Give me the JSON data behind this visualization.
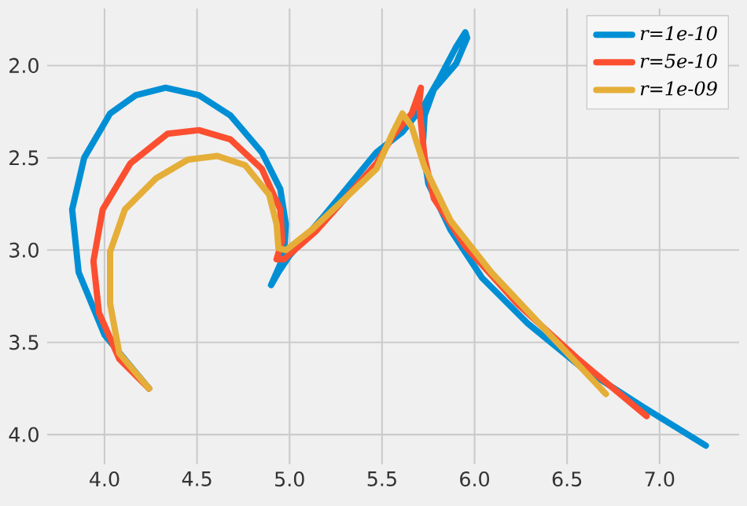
{
  "chart_data": {
    "type": "line",
    "xlim": [
      3.69,
      7.43
    ],
    "ylim": [
      4.16,
      1.69
    ],
    "xticks": [
      {
        "value": 4.0,
        "label": "4.0"
      },
      4.5,
      {
        "value": 5.0,
        "label": "5.0"
      },
      5.5,
      {
        "value": 6.0,
        "label": "6.0"
      },
      6.5,
      {
        "value": 7.0,
        "label": "7.0"
      }
    ],
    "yticks": [
      {
        "value": 2.0,
        "label": "2.0"
      },
      2.5,
      {
        "value": 3.0,
        "label": "3.0"
      },
      3.5,
      {
        "value": 4.0,
        "label": "4.0"
      }
    ],
    "grid": true,
    "legend": "top right",
    "marker": "none",
    "line_style": "solid",
    "series": [
      {
        "name": "r=1e-10",
        "color": "#008fd5",
        "x": [
          4.24,
          4.0,
          3.86,
          3.825,
          3.89,
          4.03,
          4.17,
          4.33,
          4.51,
          4.68,
          4.85,
          4.95,
          4.98,
          4.97,
          4.9,
          4.94,
          5.0,
          5.19,
          5.47,
          5.61,
          5.73,
          5.81,
          5.9,
          5.95,
          5.96,
          5.9,
          5.78,
          5.73,
          5.72,
          5.75,
          5.87,
          6.04,
          6.29,
          6.57,
          6.91,
          7.25
        ],
        "values": [
          3.75,
          3.46,
          3.12,
          2.78,
          2.5,
          2.26,
          2.16,
          2.12,
          2.16,
          2.27,
          2.47,
          2.67,
          2.86,
          3.03,
          3.19,
          3.12,
          3.03,
          2.81,
          2.47,
          2.36,
          2.21,
          2.07,
          1.9,
          1.82,
          1.85,
          1.99,
          2.13,
          2.27,
          2.44,
          2.64,
          2.89,
          3.15,
          3.4,
          3.63,
          3.85,
          4.06
        ]
      },
      {
        "name": "r=5e-10",
        "color": "#fc4f30",
        "x": [
          4.24,
          4.08,
          3.97,
          3.94,
          3.99,
          4.14,
          4.34,
          4.51,
          4.68,
          4.85,
          4.95,
          4.96,
          4.93,
          4.97,
          5.14,
          5.47,
          5.56,
          5.66,
          5.71,
          5.7,
          5.73,
          5.78,
          5.95,
          6.23,
          6.57,
          6.93
        ],
        "values": [
          3.75,
          3.59,
          3.34,
          3.06,
          2.78,
          2.53,
          2.37,
          2.35,
          2.4,
          2.56,
          2.78,
          2.95,
          3.05,
          3.05,
          2.9,
          2.53,
          2.38,
          2.26,
          2.12,
          2.21,
          2.5,
          2.72,
          2.98,
          3.29,
          3.6,
          3.9
        ]
      },
      {
        "name": "r=1e-09",
        "color": "#e5ae38",
        "x": [
          4.24,
          4.08,
          4.03,
          4.03,
          4.11,
          4.28,
          4.45,
          4.61,
          4.76,
          4.89,
          4.93,
          4.94,
          4.98,
          5.12,
          5.47,
          5.56,
          5.61,
          5.66,
          5.73,
          5.87,
          6.09,
          6.38,
          6.71
        ],
        "values": [
          3.75,
          3.56,
          3.29,
          3.01,
          2.78,
          2.61,
          2.51,
          2.49,
          2.54,
          2.7,
          2.86,
          2.99,
          3.0,
          2.89,
          2.56,
          2.36,
          2.26,
          2.33,
          2.55,
          2.84,
          3.12,
          3.43,
          3.78
        ]
      }
    ]
  }
}
